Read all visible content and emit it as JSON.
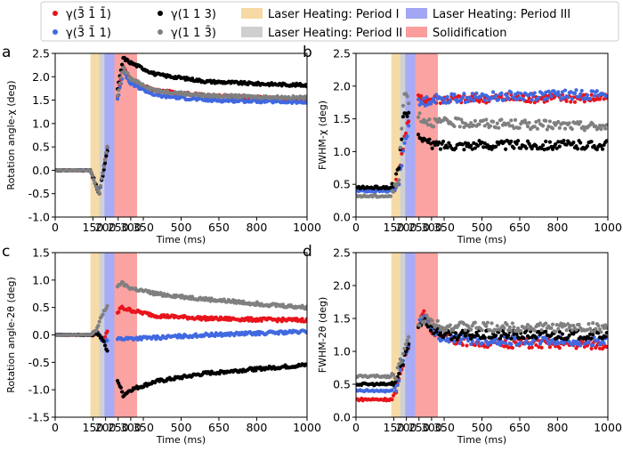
{
  "legend": [
    {
      "type": "marker",
      "color": "#e8141c",
      "label": "γ(3̄ 1̄ 1̄)"
    },
    {
      "type": "marker",
      "color": "#4169e1",
      "label": "γ(3̄ 1̄ 1)"
    },
    {
      "type": "marker",
      "color": "#000000",
      "label": "γ(1 1 3)"
    },
    {
      "type": "marker",
      "color": "#808080",
      "label": "γ(1 1 3̄)"
    },
    {
      "type": "patch",
      "color": "#f6d9a3",
      "label": "Laser Heating: Period I"
    },
    {
      "type": "patch",
      "color": "#cfcfcf",
      "label": "Laser Heating: Period II"
    },
    {
      "type": "patch",
      "color": "#a3a6f4",
      "label": "Laser Heating: Period III"
    },
    {
      "type": "patch",
      "color": "#fb9d9d",
      "label": "Solidification"
    }
  ],
  "chart_data": [
    {
      "panel": "a",
      "type": "scatter",
      "xlabel": "Time (ms)",
      "ylabel": "Rotation angle-χ (deg)",
      "xlim": [
        0,
        1000
      ],
      "ylim": [
        -1.0,
        2.5
      ],
      "xticks": [
        0,
        150,
        200,
        250,
        300,
        350,
        500,
        650,
        800,
        1000
      ],
      "yticks": [
        -1.0,
        -0.5,
        0.0,
        0.5,
        1.0,
        1.5,
        2.0,
        2.5
      ],
      "bands": [
        {
          "name": "Laser Heating: Period I",
          "x": [
            140,
            175
          ]
        },
        {
          "name": "Laser Heating: Period II",
          "x": [
            175,
            195
          ]
        },
        {
          "name": "Laser Heating: Period III",
          "x": [
            195,
            235
          ]
        },
        {
          "name": "Solidification",
          "x": [
            235,
            325
          ]
        }
      ],
      "series": [
        {
          "name": "γ(3̄ 1̄ 1̄)",
          "color": "red",
          "points": [
            [
              0,
              0
            ],
            [
              140,
              0
            ],
            [
              160,
              -0.3
            ],
            [
              175,
              -0.5
            ],
            [
              200,
              0.3
            ],
            [
              240,
              1.4
            ],
            [
              270,
              2.2
            ],
            [
              300,
              1.9
            ],
            [
              400,
              1.7
            ],
            [
              600,
              1.6
            ],
            [
              800,
              1.55
            ],
            [
              1000,
              1.5
            ]
          ]
        },
        {
          "name": "γ(3̄ 1̄ 1)",
          "color": "blue",
          "points": [
            [
              0,
              0
            ],
            [
              140,
              0
            ],
            [
              160,
              -0.3
            ],
            [
              175,
              -0.5
            ],
            [
              200,
              0.3
            ],
            [
              240,
              1.3
            ],
            [
              270,
              2.1
            ],
            [
              300,
              1.85
            ],
            [
              400,
              1.6
            ],
            [
              600,
              1.5
            ],
            [
              800,
              1.48
            ],
            [
              1000,
              1.45
            ]
          ]
        },
        {
          "name": "γ(1 1 3)",
          "color": "black",
          "points": [
            [
              0,
              0
            ],
            [
              140,
              0
            ],
            [
              160,
              -0.3
            ],
            [
              175,
              -0.5
            ],
            [
              200,
              0.2
            ],
            [
              240,
              1.5
            ],
            [
              270,
              2.4
            ],
            [
              300,
              2.3
            ],
            [
              400,
              2.05
            ],
            [
              600,
              1.9
            ],
            [
              800,
              1.85
            ],
            [
              1000,
              1.82
            ]
          ]
        },
        {
          "name": "γ(1 1 3̄)",
          "color": "gray",
          "points": [
            [
              0,
              0
            ],
            [
              140,
              0
            ],
            [
              160,
              -0.3
            ],
            [
              175,
              -0.5
            ],
            [
              200,
              0.3
            ],
            [
              240,
              1.4
            ],
            [
              270,
              2.2
            ],
            [
              300,
              1.95
            ],
            [
              400,
              1.7
            ],
            [
              600,
              1.6
            ],
            [
              800,
              1.57
            ],
            [
              1000,
              1.55
            ]
          ]
        }
      ]
    },
    {
      "panel": "b",
      "type": "scatter",
      "xlabel": "Time (ms)",
      "ylabel": "FWHM-χ (deg)",
      "xlim": [
        0,
        1000
      ],
      "ylim": [
        0.0,
        2.5
      ],
      "xticks": [
        0,
        150,
        200,
        250,
        300,
        350,
        500,
        650,
        800,
        1000
      ],
      "yticks": [
        0.0,
        0.5,
        1.0,
        1.5,
        2.0,
        2.5
      ],
      "bands": [
        {
          "name": "Laser Heating: Period I",
          "x": [
            140,
            175
          ]
        },
        {
          "name": "Laser Heating: Period II",
          "x": [
            175,
            195
          ]
        },
        {
          "name": "Laser Heating: Period III",
          "x": [
            195,
            235
          ]
        },
        {
          "name": "Solidification",
          "x": [
            235,
            325
          ]
        }
      ],
      "series": [
        {
          "name": "γ(3̄ 1̄ 1̄)",
          "color": "red",
          "points": [
            [
              0,
              0.43
            ],
            [
              140,
              0.43
            ],
            [
              170,
              0.55
            ],
            [
              190,
              1.2
            ],
            [
              230,
              1.8
            ],
            [
              260,
              1.8
            ],
            [
              300,
              1.8
            ],
            [
              600,
              1.82
            ],
            [
              1000,
              1.82
            ]
          ]
        },
        {
          "name": "γ(3̄ 1̄ 1)",
          "color": "blue",
          "points": [
            [
              0,
              0.4
            ],
            [
              140,
              0.4
            ],
            [
              170,
              0.5
            ],
            [
              190,
              1.1
            ],
            [
              230,
              1.7
            ],
            [
              260,
              1.75
            ],
            [
              300,
              1.8
            ],
            [
              600,
              1.85
            ],
            [
              1000,
              1.88
            ]
          ]
        },
        {
          "name": "γ(1 1 3)",
          "color": "black",
          "points": [
            [
              0,
              0.45
            ],
            [
              140,
              0.45
            ],
            [
              170,
              0.7
            ],
            [
              190,
              1.6
            ],
            [
              230,
              1.5
            ],
            [
              260,
              1.2
            ],
            [
              300,
              1.1
            ],
            [
              600,
              1.1
            ],
            [
              1000,
              1.1
            ]
          ]
        },
        {
          "name": "γ(1 1 3̄)",
          "color": "gray",
          "points": [
            [
              0,
              0.32
            ],
            [
              140,
              0.32
            ],
            [
              170,
              0.6
            ],
            [
              190,
              1.9
            ],
            [
              230,
              1.7
            ],
            [
              260,
              1.5
            ],
            [
              300,
              1.45
            ],
            [
              600,
              1.42
            ],
            [
              1000,
              1.38
            ]
          ]
        }
      ]
    },
    {
      "panel": "c",
      "type": "scatter",
      "xlabel": "Time (ms)",
      "ylabel": "Rotation angle-2θ (deg)",
      "xlim": [
        0,
        1000
      ],
      "ylim": [
        -1.5,
        1.5
      ],
      "xticks": [
        0,
        150,
        200,
        250,
        300,
        350,
        500,
        650,
        800,
        1000
      ],
      "yticks": [
        -1.5,
        -1.0,
        -0.5,
        0.0,
        0.5,
        1.0,
        1.5
      ],
      "bands": [
        {
          "name": "Laser Heating: Period I",
          "x": [
            140,
            175
          ]
        },
        {
          "name": "Laser Heating: Period II",
          "x": [
            175,
            195
          ]
        },
        {
          "name": "Laser Heating: Period III",
          "x": [
            195,
            235
          ]
        },
        {
          "name": "Solidification",
          "x": [
            235,
            325
          ]
        }
      ],
      "series": [
        {
          "name": "γ(3̄ 1̄ 1̄)",
          "color": "red",
          "points": [
            [
              0,
              0
            ],
            [
              140,
              0
            ],
            [
              165,
              0.05
            ],
            [
              190,
              -0.1
            ],
            [
              260,
              0.5
            ],
            [
              300,
              0.45
            ],
            [
              400,
              0.35
            ],
            [
              600,
              0.3
            ],
            [
              800,
              0.28
            ],
            [
              1000,
              0.27
            ]
          ]
        },
        {
          "name": "γ(3̄ 1̄ 1)",
          "color": "blue",
          "points": [
            [
              0,
              0
            ],
            [
              140,
              0
            ],
            [
              165,
              0.05
            ],
            [
              190,
              -0.1
            ],
            [
              260,
              -0.07
            ],
            [
              400,
              -0.05
            ],
            [
              600,
              0
            ],
            [
              800,
              0.03
            ],
            [
              1000,
              0.06
            ]
          ]
        },
        {
          "name": "γ(1 1 3)",
          "color": "black",
          "points": [
            [
              0,
              0
            ],
            [
              140,
              0
            ],
            [
              165,
              0.05
            ],
            [
              190,
              -0.1
            ],
            [
              270,
              -1.1
            ],
            [
              300,
              -1.0
            ],
            [
              400,
              -0.85
            ],
            [
              600,
              -0.7
            ],
            [
              800,
              -0.62
            ],
            [
              1000,
              -0.55
            ]
          ]
        },
        {
          "name": "γ(1 1 3̄)",
          "color": "gray",
          "points": [
            [
              0,
              0
            ],
            [
              140,
              0
            ],
            [
              165,
              0.1
            ],
            [
              190,
              0.4
            ],
            [
              260,
              0.95
            ],
            [
              300,
              0.85
            ],
            [
              400,
              0.75
            ],
            [
              600,
              0.65
            ],
            [
              800,
              0.57
            ],
            [
              1000,
              0.5
            ]
          ]
        }
      ]
    },
    {
      "panel": "d",
      "type": "scatter",
      "xlabel": "Time (ms)",
      "ylabel": "FWHM-2θ (deg)",
      "xlim": [
        0,
        1000
      ],
      "ylim": [
        0.0,
        2.5
      ],
      "xticks": [
        0,
        150,
        200,
        250,
        300,
        350,
        500,
        650,
        800,
        1000
      ],
      "yticks": [
        0.0,
        0.5,
        1.0,
        1.5,
        2.0,
        2.5
      ],
      "bands": [
        {
          "name": "Laser Heating: Period I",
          "x": [
            140,
            175
          ]
        },
        {
          "name": "Laser Heating: Period II",
          "x": [
            175,
            195
          ]
        },
        {
          "name": "Laser Heating: Period III",
          "x": [
            195,
            235
          ]
        },
        {
          "name": "Solidification",
          "x": [
            235,
            325
          ]
        }
      ],
      "series": [
        {
          "name": "γ(3̄ 1̄ 1̄)",
          "color": "red",
          "points": [
            [
              0,
              0.27
            ],
            [
              140,
              0.27
            ],
            [
              160,
              0.35
            ],
            [
              190,
              0.9
            ],
            [
              230,
              1.3
            ],
            [
              270,
              1.6
            ],
            [
              300,
              1.35
            ],
            [
              350,
              1.2
            ],
            [
              500,
              1.13
            ],
            [
              1000,
              1.1
            ]
          ]
        },
        {
          "name": "γ(3̄ 1̄ 1)",
          "color": "blue",
          "points": [
            [
              0,
              0.4
            ],
            [
              140,
              0.4
            ],
            [
              160,
              0.45
            ],
            [
              190,
              0.9
            ],
            [
              230,
              1.3
            ],
            [
              270,
              1.55
            ],
            [
              300,
              1.3
            ],
            [
              350,
              1.2
            ],
            [
              500,
              1.17
            ],
            [
              1000,
              1.15
            ]
          ]
        },
        {
          "name": "γ(1 1 3)",
          "color": "black",
          "points": [
            [
              0,
              0.5
            ],
            [
              140,
              0.5
            ],
            [
              160,
              0.55
            ],
            [
              190,
              0.9
            ],
            [
              230,
              1.3
            ],
            [
              270,
              1.5
            ],
            [
              300,
              1.35
            ],
            [
              350,
              1.25
            ],
            [
              500,
              1.25
            ],
            [
              1000,
              1.25
            ]
          ]
        },
        {
          "name": "γ(1 1 3̄)",
          "color": "gray",
          "points": [
            [
              0,
              0.62
            ],
            [
              140,
              0.62
            ],
            [
              160,
              0.65
            ],
            [
              190,
              1.0
            ],
            [
              230,
              1.35
            ],
            [
              270,
              1.5
            ],
            [
              300,
              1.45
            ],
            [
              350,
              1.38
            ],
            [
              500,
              1.37
            ],
            [
              1000,
              1.36
            ]
          ]
        }
      ]
    }
  ]
}
